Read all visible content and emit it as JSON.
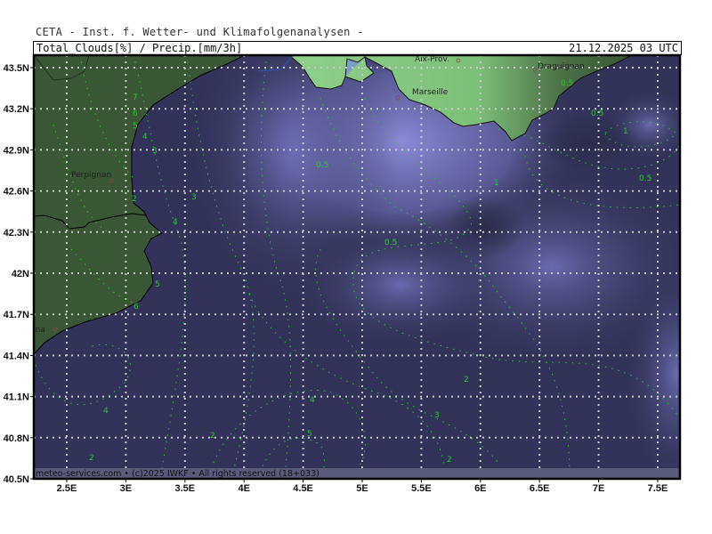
{
  "header": {
    "organization": "CETA - Inst. f. Wetter- und Klimafolgenanalysen -",
    "parameter": "Total_Clouds[%] / Precip.[mm/3h]",
    "valid_time": "21.12.2025 03 UTC"
  },
  "map": {
    "lat_ticks": [
      "43.5N",
      "43.2N",
      "42.9N",
      "42.6N",
      "42.3N",
      "42N",
      "41.7N",
      "41.4N",
      "41.1N",
      "40.8N",
      "40.5N"
    ],
    "lon_ticks": [
      "2.5E",
      "3E",
      "3.5E",
      "4E",
      "4.5E",
      "5E",
      "5.5E",
      "6E",
      "6.5E",
      "7E",
      "7.5E"
    ],
    "cities": [
      "Perpignan",
      "Barcelona",
      "Aix-Prov.",
      "Marseille",
      "Draguignan"
    ],
    "contour_labels": [
      "7",
      "6",
      "5",
      "4",
      "3",
      "3",
      "4",
      "2",
      "5",
      "6",
      "0.5",
      "0.5",
      "0.5",
      "0.5",
      "0.5",
      "1",
      "1",
      "2",
      "3",
      "4",
      "5",
      "2",
      "4",
      "2",
      "2"
    ],
    "colors": {
      "land_light": "#8fd08a",
      "land_dark": "#3a5636",
      "sea_dark": "#33335a",
      "cloud_light": "#8a8ad8",
      "contour": "#22cc22"
    }
  },
  "footer": {
    "credit": "meteo-services.com • (c)2025 IWKF • All rights reserved (18+033)"
  }
}
